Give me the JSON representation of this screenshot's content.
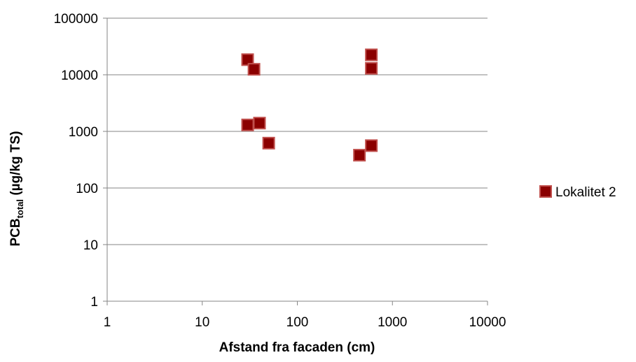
{
  "chart_data": {
    "type": "scatter",
    "x_scale": "log",
    "y_scale": "log",
    "xlim": [
      1,
      10000
    ],
    "ylim": [
      1,
      100000
    ],
    "x_ticks": [
      "1",
      "10",
      "100",
      "1000",
      "10000"
    ],
    "y_ticks": [
      "1",
      "10",
      "100",
      "1000",
      "10000",
      "100000"
    ],
    "grid": "horizontal",
    "legend_position": "right",
    "xlabel": "Afstand fra facaden (cm)",
    "ylabel": {
      "main": "PCB",
      "subscript": "total",
      "unit": " (µg/kg TS)"
    },
    "series": [
      {
        "name": "Lokalitet 2",
        "color": "#8b0000",
        "marker_border": "#c0504d",
        "marker": "square",
        "points": [
          {
            "x": 30,
            "y": 18500
          },
          {
            "x": 35,
            "y": 12500
          },
          {
            "x": 30,
            "y": 1300
          },
          {
            "x": 40,
            "y": 1400
          },
          {
            "x": 50,
            "y": 620
          },
          {
            "x": 600,
            "y": 22500
          },
          {
            "x": 600,
            "y": 13000
          },
          {
            "x": 600,
            "y": 560
          },
          {
            "x": 450,
            "y": 380
          }
        ]
      }
    ]
  }
}
